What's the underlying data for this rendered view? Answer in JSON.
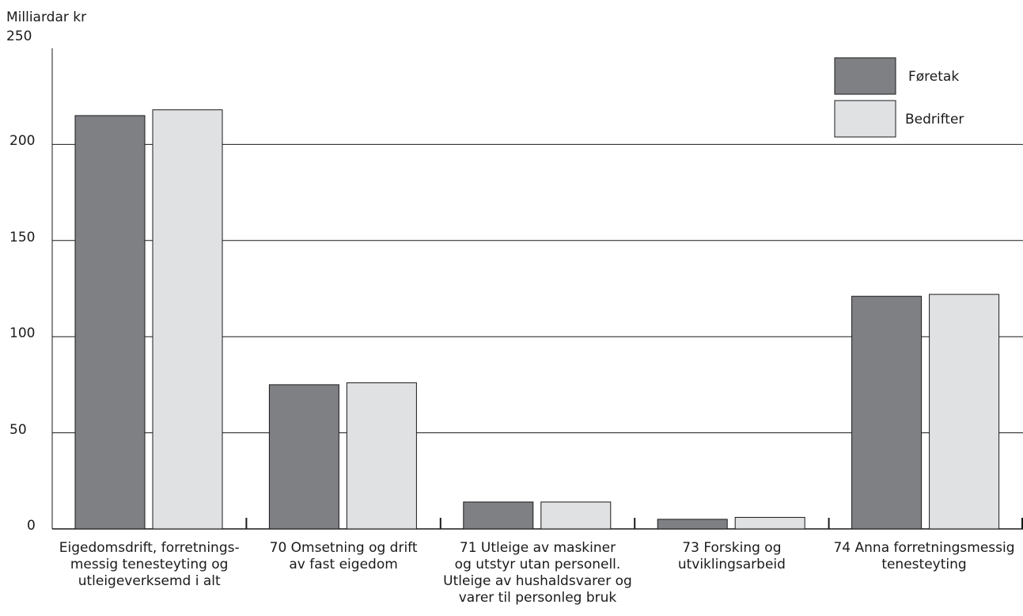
{
  "chart_data": {
    "type": "bar",
    "ylabel": "Milliardar kr",
    "ylim": [
      0,
      250
    ],
    "yticks": [
      "0",
      "50",
      "100",
      "150",
      "200",
      "250"
    ],
    "grid": true,
    "legend_position": "top-right",
    "categories": [
      "Eigedomsdrift, forretnings-\nmessig tenesteyting og\nutleigeverksemd i alt",
      "70 Omsetning og drift\nav fast eigedom",
      "71 Utleige av maskiner\nog utstyr utan personell.\nUtleige av hushaldsvarer og\nvarer til personleg bruk",
      "73 Forsking og\nutviklingsarbeid",
      "74 Anna forretningsmessig\ntenesteyting"
    ],
    "series": [
      {
        "name": "Føretak",
        "color": "#7f8084",
        "values": [
          215,
          75,
          14,
          5,
          121
        ]
      },
      {
        "name": "Bedrifter",
        "color": "#e0e1e3",
        "values": [
          218,
          76,
          14,
          6,
          122
        ]
      }
    ]
  }
}
